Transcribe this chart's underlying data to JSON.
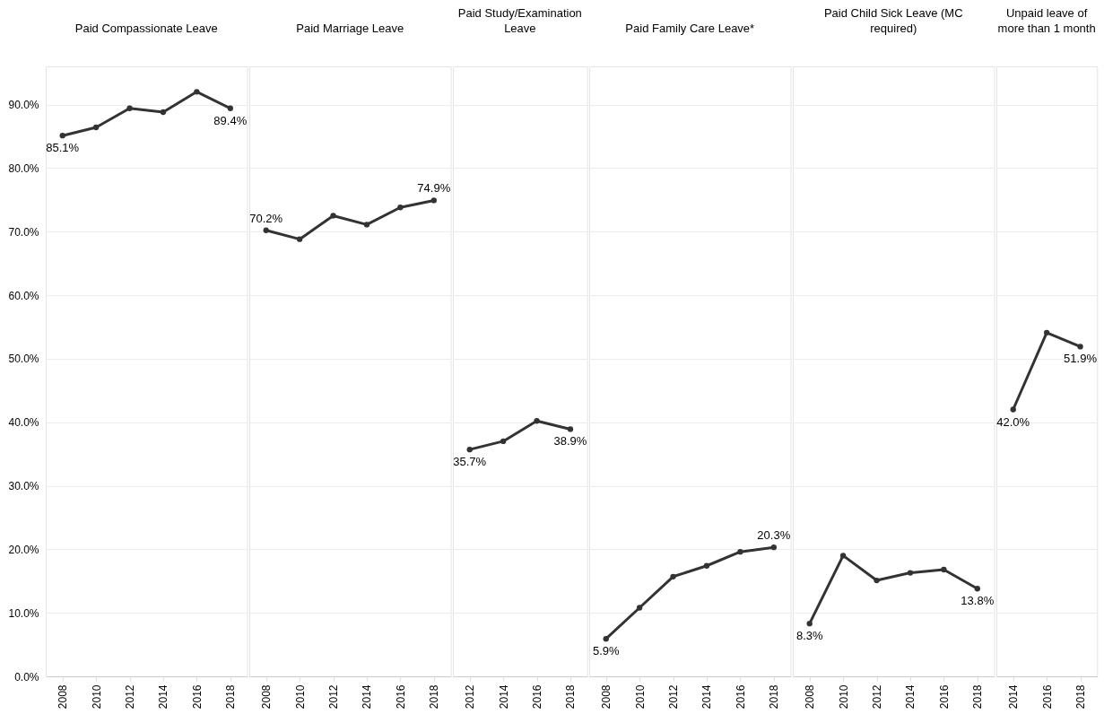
{
  "chart_data": [
    {
      "type": "line",
      "title": "Paid Compassionate Leave",
      "categories": [
        "2008",
        "2010",
        "2012",
        "2014",
        "2016",
        "2018"
      ],
      "values": [
        85.1,
        86.4,
        89.4,
        88.8,
        92.0,
        89.4
      ],
      "value_labels": [
        "85.1%",
        null,
        null,
        null,
        null,
        "89.4%"
      ],
      "color": "#333333",
      "ylim": [
        0,
        96
      ],
      "yticks": [
        {
          "value": 0,
          "label": "0.0%"
        },
        {
          "value": 10,
          "label": "10.0%"
        },
        {
          "value": 20,
          "label": "20.0%"
        },
        {
          "value": 30,
          "label": "30.0%"
        },
        {
          "value": 40,
          "label": "40.0%"
        },
        {
          "value": 50,
          "label": "50.0%"
        },
        {
          "value": 60,
          "label": "60.0%"
        },
        {
          "value": 70,
          "label": "70.0%"
        },
        {
          "value": 80,
          "label": "80.0%"
        },
        {
          "value": 90,
          "label": "90.0%"
        }
      ],
      "grid": "y",
      "marker": "circle",
      "line_style": "solid"
    },
    {
      "type": "line",
      "title": "Paid Marriage Leave",
      "categories": [
        "2008",
        "2010",
        "2012",
        "2014",
        "2016",
        "2018"
      ],
      "values": [
        70.2,
        68.8,
        72.5,
        71.1,
        73.8,
        74.9
      ],
      "value_labels": [
        "70.2%",
        null,
        null,
        null,
        null,
        "74.9%"
      ],
      "color": "#333333",
      "ylim": [
        0,
        96
      ],
      "yticks": [
        0,
        10,
        20,
        30,
        40,
        50,
        60,
        70,
        80,
        90
      ],
      "grid": "y",
      "marker": "circle",
      "line_style": "solid",
      "tick_labels": "x"
    },
    {
      "type": "line",
      "title": "Paid Study/Examination Leave",
      "categories": [
        "2012",
        "2014",
        "2016",
        "2018"
      ],
      "values": [
        35.7,
        37.0,
        40.2,
        38.9
      ],
      "value_labels": [
        "35.7%",
        null,
        null,
        "38.9%"
      ],
      "color": "#333333",
      "ylim": [
        0,
        96
      ],
      "yticks": [
        0,
        10,
        20,
        30,
        40,
        50,
        60,
        70,
        80,
        90
      ],
      "grid": "y",
      "marker": "circle",
      "line_style": "solid",
      "tick_labels": "x"
    },
    {
      "type": "line",
      "title": "Paid Family Care Leave*",
      "categories": [
        "2008",
        "2010",
        "2012",
        "2014",
        "2016",
        "2018"
      ],
      "values": [
        5.9,
        10.8,
        15.7,
        17.4,
        19.6,
        20.3
      ],
      "value_labels": [
        "5.9%",
        null,
        null,
        null,
        null,
        "20.3%"
      ],
      "color": "#333333",
      "ylim": [
        0,
        96
      ],
      "yticks": [
        0,
        10,
        20,
        30,
        40,
        50,
        60,
        70,
        80,
        90
      ],
      "grid": "y",
      "marker": "circle",
      "line_style": "solid",
      "tick_labels": "x"
    },
    {
      "type": "line",
      "title": "Paid Child Sick Leave (MC required)",
      "categories": [
        "2008",
        "2010",
        "2012",
        "2014",
        "2016",
        "2018"
      ],
      "values": [
        8.3,
        19.0,
        15.1,
        16.3,
        16.8,
        13.8
      ],
      "value_labels": [
        "8.3%",
        null,
        null,
        null,
        null,
        "13.8%"
      ],
      "color": "#333333",
      "ylim": [
        0,
        96
      ],
      "yticks": [
        0,
        10,
        20,
        30,
        40,
        50,
        60,
        70,
        80,
        90
      ],
      "grid": "y",
      "marker": "circle",
      "line_style": "solid",
      "tick_labels": "x"
    },
    {
      "type": "line",
      "title": "Unpaid leave of more than 1 month",
      "categories": [
        "2014",
        "2016",
        "2018"
      ],
      "values": [
        42.0,
        54.1,
        51.9
      ],
      "value_labels": [
        "42.0%",
        null,
        "51.9%"
      ],
      "color": "#333333",
      "ylim": [
        0,
        96
      ],
      "yticks": [
        0,
        10,
        20,
        30,
        40,
        50,
        60,
        70,
        80,
        90
      ],
      "grid": "y",
      "marker": "circle",
      "line_style": "solid",
      "tick_labels": "x"
    }
  ]
}
